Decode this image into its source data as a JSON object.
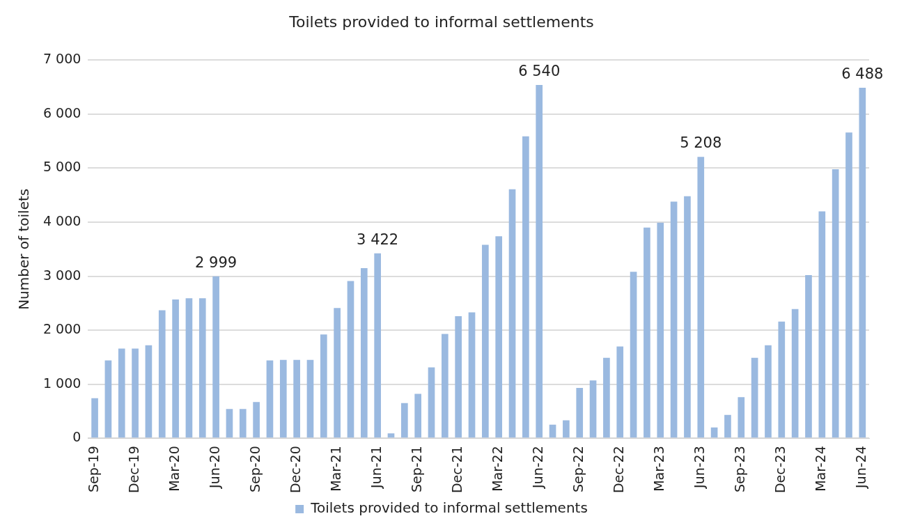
{
  "chart_data": {
    "type": "bar",
    "title": "Toilets provided to informal settlements",
    "ylabel": "Number of toilets",
    "categories": [
      "Sep-19",
      null,
      null,
      "Dec-19",
      null,
      null,
      "Mar-20",
      null,
      null,
      "Jun-20",
      null,
      null,
      "Sep-20",
      null,
      null,
      "Dec-20",
      null,
      null,
      "Mar-21",
      null,
      null,
      "Jun-21",
      null,
      null,
      "Sep-21",
      null,
      null,
      "Dec-21",
      null,
      null,
      "Mar-22",
      null,
      null,
      "Jun-22",
      null,
      null,
      "Sep-22",
      null,
      null,
      "Dec-22",
      null,
      null,
      "Mar-23",
      null,
      null,
      "Jun-23",
      null,
      null,
      "Sep-23",
      null,
      null,
      "Dec-23",
      null,
      null,
      "Mar-24",
      null,
      null,
      "Jun-24"
    ],
    "series": [
      {
        "name": "Toilets provided to informal settlements",
        "color": "#9ab9e0",
        "values": [
          740,
          1440,
          1660,
          1660,
          1720,
          2370,
          2570,
          2590,
          2590,
          2999,
          540,
          540,
          670,
          1440,
          1450,
          1450,
          1450,
          1920,
          2410,
          2910,
          3150,
          3422,
          90,
          650,
          820,
          1310,
          1930,
          2260,
          2330,
          3580,
          3740,
          4610,
          5590,
          6540,
          250,
          330,
          930,
          1070,
          1490,
          1700,
          3080,
          3900,
          3990,
          4380,
          4480,
          5208,
          200,
          430,
          760,
          1490,
          1720,
          2160,
          2390,
          3020,
          4200,
          4980,
          5660,
          6488
        ],
        "value_labels": [
          null,
          null,
          null,
          null,
          null,
          null,
          null,
          null,
          null,
          "2 999",
          null,
          null,
          null,
          null,
          null,
          null,
          null,
          null,
          null,
          null,
          null,
          "3 422",
          null,
          null,
          null,
          null,
          null,
          null,
          null,
          null,
          null,
          null,
          null,
          "6 540",
          null,
          null,
          null,
          null,
          null,
          null,
          null,
          null,
          null,
          null,
          null,
          "5 208",
          null,
          null,
          null,
          null,
          null,
          null,
          null,
          null,
          null,
          null,
          null,
          "6 488"
        ]
      }
    ],
    "ylim": [
      0,
      7000
    ],
    "yticks": [
      {
        "value": 0,
        "label": "0"
      },
      {
        "value": 1000,
        "label": "1 000"
      },
      {
        "value": 2000,
        "label": "2 000"
      },
      {
        "value": 3000,
        "label": "3 000"
      },
      {
        "value": 4000,
        "label": "4 000"
      },
      {
        "value": 5000,
        "label": "5 000"
      },
      {
        "value": 6000,
        "label": "6 000"
      },
      {
        "value": 7000,
        "label": "7 000"
      }
    ],
    "grid": "y",
    "legend": "bottom"
  }
}
